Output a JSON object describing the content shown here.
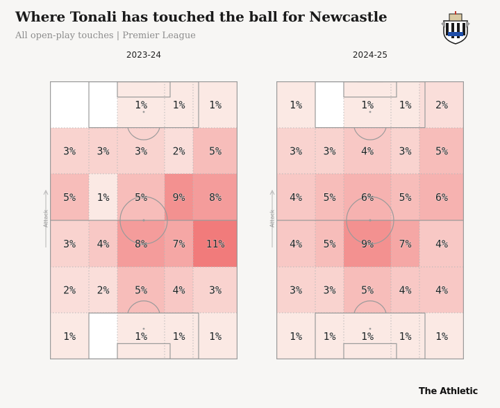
{
  "title": "Where Tonali has touched the ball for Newcastle",
  "subtitle": "All open-play touches | Premier League",
  "attack_label": "Attack",
  "footer_brand": "The Athletic",
  "crest_icon": "newcastle-crest-icon",
  "colors": {
    "background": "#f7f6f4",
    "heat_low": "#fbe9e4",
    "heat_high": "#f17b7b",
    "line": "#999999"
  },
  "chart_data": [
    {
      "type": "heatmap",
      "title": "2023-24",
      "rows": 6,
      "cols": 5,
      "orientation": "attack upward (row 0 = opponent goal end)",
      "values": [
        [
          null,
          null,
          1,
          1,
          1
        ],
        [
          3,
          3,
          3,
          2,
          5
        ],
        [
          5,
          1,
          5,
          9,
          8
        ],
        [
          3,
          4,
          8,
          7,
          11
        ],
        [
          2,
          2,
          5,
          4,
          3
        ],
        [
          1,
          null,
          1,
          1,
          1
        ]
      ],
      "labels": [
        [
          "",
          "",
          "1%",
          "1%",
          "1%"
        ],
        [
          "3%",
          "3%",
          "3%",
          "2%",
          "5%"
        ],
        [
          "5%",
          "1%",
          "5%",
          "9%",
          "8%"
        ],
        [
          "3%",
          "4%",
          "8%",
          "7%",
          "11%"
        ],
        [
          "2%",
          "2%",
          "5%",
          "4%",
          "3%"
        ],
        [
          "1%",
          "",
          "1%",
          "1%",
          "1%"
        ]
      ]
    },
    {
      "type": "heatmap",
      "title": "2024-25",
      "rows": 6,
      "cols": 5,
      "orientation": "attack upward (row 0 = opponent goal end)",
      "values": [
        [
          1,
          null,
          1,
          1,
          2
        ],
        [
          3,
          3,
          4,
          3,
          5
        ],
        [
          4,
          5,
          6,
          5,
          6
        ],
        [
          4,
          5,
          9,
          7,
          4
        ],
        [
          3,
          3,
          5,
          4,
          4
        ],
        [
          1,
          1,
          1,
          1,
          1
        ]
      ],
      "labels": [
        [
          "1%",
          "",
          "1%",
          "1%",
          "2%"
        ],
        [
          "3%",
          "3%",
          "4%",
          "3%",
          "5%"
        ],
        [
          "4%",
          "5%",
          "6%",
          "5%",
          "6%"
        ],
        [
          "4%",
          "5%",
          "9%",
          "7%",
          "4%"
        ],
        [
          "3%",
          "3%",
          "5%",
          "4%",
          "4%"
        ],
        [
          "1%",
          "1%",
          "1%",
          "1%",
          "1%"
        ]
      ]
    }
  ]
}
